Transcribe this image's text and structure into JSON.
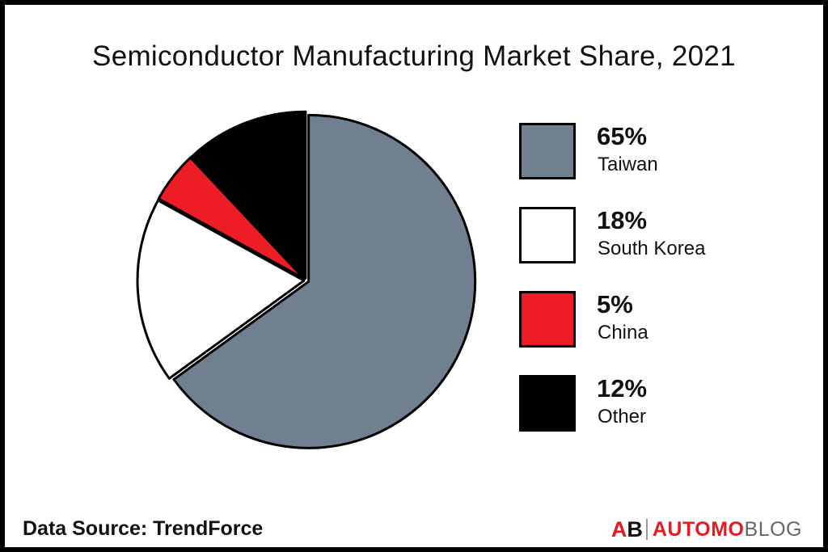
{
  "chart_data": {
    "type": "pie",
    "title": "Semiconductor Manufacturing Market Share, 2021",
    "slices": [
      {
        "label": "Taiwan",
        "value": 65,
        "value_label": "65%",
        "color": "#708090"
      },
      {
        "label": "South Korea",
        "value": 18,
        "value_label": "18%",
        "color": "#ffffff"
      },
      {
        "label": "China",
        "value": 5,
        "value_label": "5%",
        "color": "#ee1c25"
      },
      {
        "label": "Other",
        "value": 12,
        "value_label": "12%",
        "color": "#000000"
      }
    ],
    "legend_position": "right"
  },
  "footer": {
    "source": "Data Source: TrendForce"
  },
  "brand": {
    "mark_a": "A",
    "mark_b": "B",
    "word_1": "AUTOMO",
    "word_2": "BLOG"
  }
}
